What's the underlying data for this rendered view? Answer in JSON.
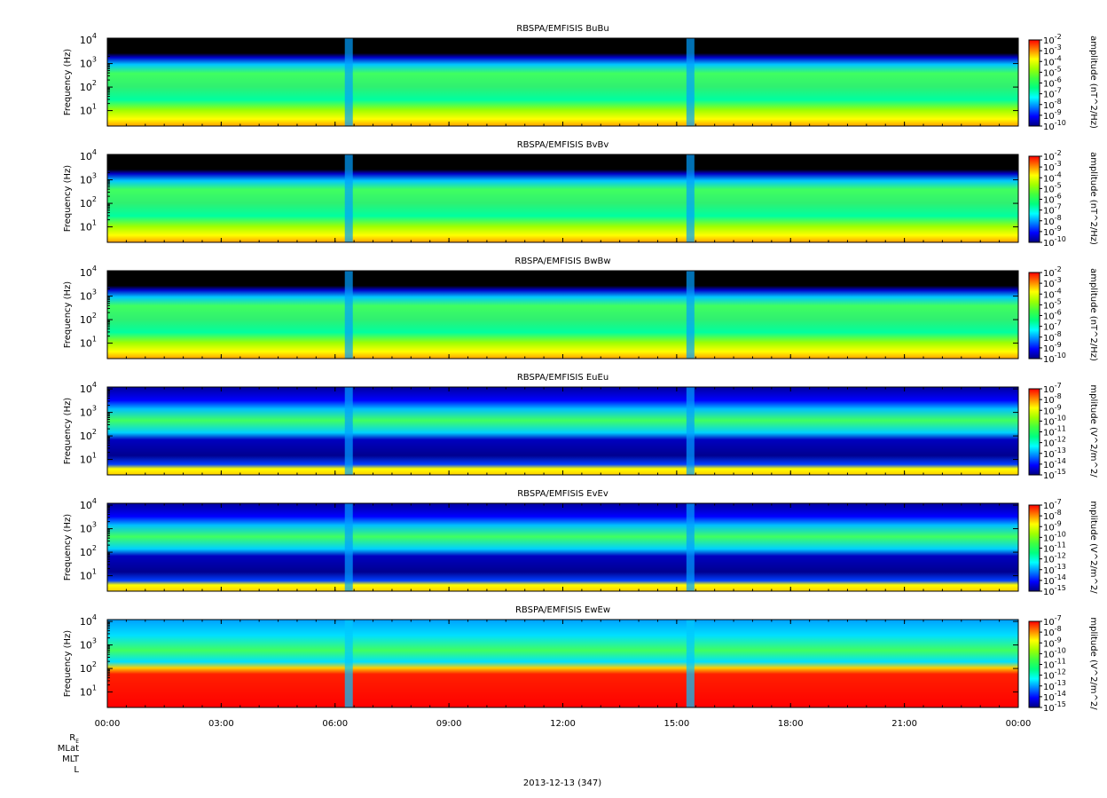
{
  "chart_data": {
    "type": "heatmap",
    "x_axis": {
      "range": [
        "00:00",
        "24:00"
      ],
      "tick_labels": [
        "00:00",
        "03:00",
        "06:00",
        "09:00",
        "12:00",
        "15:00",
        "18:00",
        "21:00",
        "00:00"
      ],
      "tick_hours": [
        0,
        3,
        6,
        9,
        12,
        15,
        18,
        21,
        24
      ],
      "minor_tick_step_hours": 0.5
    },
    "y_scale": "log",
    "ephemeris_labels": [
      "R",
      "MLat",
      "MLT",
      "L"
    ],
    "ephemeris_subscript": "E",
    "date_label": "2013-12-13 (347)",
    "colormap": [
      "#000080",
      "#0000ff",
      "#0080ff",
      "#00ffff",
      "#00ff80",
      "#40ff40",
      "#a0ff00",
      "#ffff00",
      "#ff8000",
      "#ff0000"
    ],
    "panels": [
      {
        "title": "RBSPA/EMFISIS  BuBu",
        "ylabel": "Frequency (Hz)",
        "yrange_hz": [
          2.2,
          12000
        ],
        "y_ticks": [
          {
            "base": "10",
            "exp": "1"
          },
          {
            "base": "10",
            "exp": "2"
          },
          {
            "base": "10",
            "exp": "3"
          },
          {
            "base": "10",
            "exp": "4"
          }
        ],
        "colorbar_label": "amplitude (nT^2/Hz)",
        "colorbar_ticks": [
          {
            "base": "10",
            "exp": "-2"
          },
          {
            "base": "10",
            "exp": "-3"
          },
          {
            "base": "10",
            "exp": "-4"
          },
          {
            "base": "10",
            "exp": "-5"
          },
          {
            "base": "10",
            "exp": "-6"
          },
          {
            "base": "10",
            "exp": "-7"
          },
          {
            "base": "10",
            "exp": "-8"
          },
          {
            "base": "10",
            "exp": "-9"
          },
          {
            "base": "10",
            "exp": "-10"
          }
        ]
      },
      {
        "title": "RBSPA/EMFISIS  BvBv",
        "ylabel": "Frequency (Hz)",
        "yrange_hz": [
          2.2,
          12000
        ],
        "y_ticks": [
          {
            "base": "10",
            "exp": "1"
          },
          {
            "base": "10",
            "exp": "2"
          },
          {
            "base": "10",
            "exp": "3"
          },
          {
            "base": "10",
            "exp": "4"
          }
        ],
        "colorbar_label": "amplitude (nT^2/Hz)",
        "colorbar_ticks": [
          {
            "base": "10",
            "exp": "-2"
          },
          {
            "base": "10",
            "exp": "-3"
          },
          {
            "base": "10",
            "exp": "-4"
          },
          {
            "base": "10",
            "exp": "-5"
          },
          {
            "base": "10",
            "exp": "-6"
          },
          {
            "base": "10",
            "exp": "-7"
          },
          {
            "base": "10",
            "exp": "-8"
          },
          {
            "base": "10",
            "exp": "-9"
          },
          {
            "base": "10",
            "exp": "-10"
          }
        ]
      },
      {
        "title": "RBSPA/EMFISIS  BwBw",
        "ylabel": "Frequency (Hz)",
        "yrange_hz": [
          2.2,
          12000
        ],
        "y_ticks": [
          {
            "base": "10",
            "exp": "1"
          },
          {
            "base": "10",
            "exp": "2"
          },
          {
            "base": "10",
            "exp": "3"
          },
          {
            "base": "10",
            "exp": "4"
          }
        ],
        "colorbar_label": "amplitude (nT^2/Hz)",
        "colorbar_ticks": [
          {
            "base": "10",
            "exp": "-2"
          },
          {
            "base": "10",
            "exp": "-3"
          },
          {
            "base": "10",
            "exp": "-4"
          },
          {
            "base": "10",
            "exp": "-5"
          },
          {
            "base": "10",
            "exp": "-6"
          },
          {
            "base": "10",
            "exp": "-7"
          },
          {
            "base": "10",
            "exp": "-8"
          },
          {
            "base": "10",
            "exp": "-9"
          },
          {
            "base": "10",
            "exp": "-10"
          }
        ]
      },
      {
        "title": "RBSPA/EMFISIS  EuEu",
        "ylabel": "Frequency (Hz)",
        "yrange_hz": [
          2.2,
          12000
        ],
        "y_ticks": [
          {
            "base": "10",
            "exp": "1"
          },
          {
            "base": "10",
            "exp": "2"
          },
          {
            "base": "10",
            "exp": "3"
          },
          {
            "base": "10",
            "exp": "4"
          }
        ],
        "colorbar_label": "mplitude (V^2/m^2/",
        "colorbar_ticks": [
          {
            "base": "10",
            "exp": "-7"
          },
          {
            "base": "10",
            "exp": "-8"
          },
          {
            "base": "10",
            "exp": "-9"
          },
          {
            "base": "10",
            "exp": "-10"
          },
          {
            "base": "10",
            "exp": "-11"
          },
          {
            "base": "10",
            "exp": "-12"
          },
          {
            "base": "10",
            "exp": "-13"
          },
          {
            "base": "10",
            "exp": "-14"
          },
          {
            "base": "10",
            "exp": "-15"
          }
        ]
      },
      {
        "title": "RBSPA/EMFISIS  EvEv",
        "ylabel": "Frequency (Hz)",
        "yrange_hz": [
          2.2,
          12000
        ],
        "y_ticks": [
          {
            "base": "10",
            "exp": "1"
          },
          {
            "base": "10",
            "exp": "2"
          },
          {
            "base": "10",
            "exp": "3"
          },
          {
            "base": "10",
            "exp": "4"
          }
        ],
        "colorbar_label": "mplitude (V^2/m^2/",
        "colorbar_ticks": [
          {
            "base": "10",
            "exp": "-7"
          },
          {
            "base": "10",
            "exp": "-8"
          },
          {
            "base": "10",
            "exp": "-9"
          },
          {
            "base": "10",
            "exp": "-10"
          },
          {
            "base": "10",
            "exp": "-11"
          },
          {
            "base": "10",
            "exp": "-12"
          },
          {
            "base": "10",
            "exp": "-13"
          },
          {
            "base": "10",
            "exp": "-14"
          },
          {
            "base": "10",
            "exp": "-15"
          }
        ]
      },
      {
        "title": "RBSPA/EMFISIS  EwEw",
        "ylabel": "Frequency (Hz)",
        "yrange_hz": [
          2.2,
          12000
        ],
        "y_ticks": [
          {
            "base": "10",
            "exp": "1"
          },
          {
            "base": "10",
            "exp": "2"
          },
          {
            "base": "10",
            "exp": "3"
          },
          {
            "base": "10",
            "exp": "4"
          }
        ],
        "colorbar_label": "mplitude (V^2/m^2/",
        "colorbar_ticks": [
          {
            "base": "10",
            "exp": "-7"
          },
          {
            "base": "10",
            "exp": "-8"
          },
          {
            "base": "10",
            "exp": "-9"
          },
          {
            "base": "10",
            "exp": "-10"
          },
          {
            "base": "10",
            "exp": "-11"
          },
          {
            "base": "10",
            "exp": "-12"
          },
          {
            "base": "10",
            "exp": "-13"
          },
          {
            "base": "10",
            "exp": "-14"
          },
          {
            "base": "10",
            "exp": "-15"
          }
        ]
      }
    ]
  }
}
